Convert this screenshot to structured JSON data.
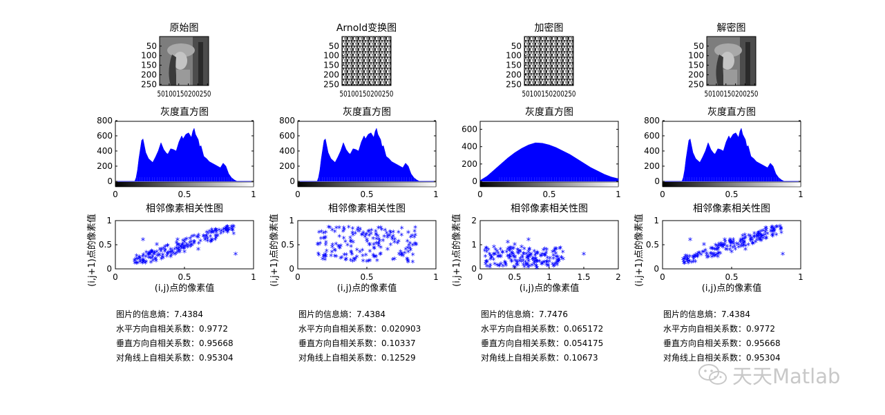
{
  "watermark": "天天Matlab",
  "colors": {
    "hist": "#0000ff",
    "scatter": "#0000ff",
    "axis": "#000000"
  },
  "panels": [
    {
      "image": {
        "title": "原始图",
        "yticks": [
          "50",
          "100",
          "150",
          "200",
          "250"
        ],
        "xtick_text": "50100150200250",
        "content": "lena"
      },
      "stats": {
        "entropy": "图片的信息熵：7.4384",
        "horizontal": "水平方向自相关系数：0.9772",
        "vertical": "垂直方向自相关系数：0.95668",
        "diagonal": "对角线上自相关系数：0.95304"
      }
    },
    {
      "image": {
        "title": "Arnold变换图",
        "yticks": [
          "50",
          "100",
          "150",
          "200",
          "250"
        ],
        "xtick_text": "50100150200250",
        "content": "noise"
      },
      "stats": {
        "entropy": "图片的信息熵：7.4384",
        "horizontal": "水平方向自相关系数：0.020903",
        "vertical": "垂直方向自相关系数：0.10337",
        "diagonal": "对角线上自相关系数：0.12529"
      }
    },
    {
      "image": {
        "title": "加密图",
        "yticks": [
          "50",
          "100",
          "150",
          "200",
          "250"
        ],
        "xtick_text": "50100150200250",
        "content": "noise"
      },
      "stats": {
        "entropy": "图片的信息熵：7.7476",
        "horizontal": "水平方向自相关系数：0.065172",
        "vertical": "垂直方向自相关系数：0.054175",
        "diagonal": "对角线上自相关系数：0.10673"
      }
    },
    {
      "image": {
        "title": "解密图",
        "yticks": [
          "50",
          "100",
          "150",
          "200",
          "250"
        ],
        "xtick_text": "50100150200250",
        "content": "lena"
      },
      "stats": {
        "entropy": "图片的信息熵：7.4384",
        "horizontal": "水平方向自相关系数：0.9772",
        "vertical": "垂直方向自相关系数：0.95668",
        "diagonal": "对角线上自相关系数：0.95304"
      }
    }
  ],
  "chart_data": [
    {
      "type": "area",
      "title": "灰度直方图",
      "xlim": [
        0,
        1
      ],
      "ylim": [
        0,
        800
      ],
      "xticks": [
        "0",
        "0.5",
        "1"
      ],
      "yticks": [
        "0",
        "200",
        "400",
        "600",
        "800"
      ],
      "colorbar": "gray",
      "series": [
        {
          "x": [
            0,
            0.14,
            0.15,
            0.16,
            0.17,
            0.18,
            0.19,
            0.2,
            0.21,
            0.22,
            0.24,
            0.27,
            0.29,
            0.31,
            0.33,
            0.35,
            0.37,
            0.38,
            0.4,
            0.42,
            0.44,
            0.46,
            0.48,
            0.49,
            0.51,
            0.53,
            0.55,
            0.56,
            0.57,
            0.58,
            0.6,
            0.61,
            0.62,
            0.64,
            0.66,
            0.68,
            0.7,
            0.72,
            0.74,
            0.76,
            0.78,
            0.8,
            0.82,
            0.84,
            0.86,
            0.88,
            1
          ],
          "y": [
            0,
            0,
            50,
            150,
            300,
            420,
            540,
            560,
            470,
            380,
            300,
            250,
            320,
            400,
            510,
            420,
            370,
            360,
            430,
            420,
            400,
            520,
            600,
            560,
            620,
            640,
            580,
            660,
            700,
            620,
            550,
            460,
            470,
            330,
            300,
            260,
            240,
            220,
            200,
            180,
            240,
            200,
            100,
            50,
            20,
            0,
            0
          ]
        }
      ]
    },
    {
      "type": "scatter",
      "title": "相邻像素相关性图",
      "xlabel": "(i,j)点的像素值",
      "ylabel": "(i,j+1)点的像素值",
      "xlim": [
        0,
        1
      ],
      "ylim": [
        0,
        1
      ],
      "xticks": [
        "0",
        "0.5",
        "1"
      ],
      "yticks": [
        "0",
        "0.5",
        "1"
      ],
      "points": [
        [
          0.15,
          0.2
        ],
        [
          0.18,
          0.22
        ],
        [
          0.2,
          0.6
        ],
        [
          0.22,
          0.25
        ],
        [
          0.25,
          0.3
        ],
        [
          0.3,
          0.35
        ],
        [
          0.32,
          0.28
        ],
        [
          0.35,
          0.42
        ],
        [
          0.4,
          0.4
        ],
        [
          0.45,
          0.5
        ],
        [
          0.5,
          0.55
        ],
        [
          0.55,
          0.5
        ],
        [
          0.6,
          0.65
        ],
        [
          0.65,
          0.6
        ],
        [
          0.7,
          0.75
        ],
        [
          0.75,
          0.8
        ],
        [
          0.8,
          0.85
        ],
        [
          0.85,
          0.88
        ],
        [
          0.4,
          0.25
        ],
        [
          0.6,
          0.4
        ],
        [
          0.3,
          0.5
        ],
        [
          0.7,
          0.6
        ],
        [
          0.5,
          0.35
        ],
        [
          0.45,
          0.6
        ],
        [
          0.87,
          0.3
        ]
      ]
    },
    {
      "type": "area",
      "title": "灰度直方图",
      "xlim": [
        0,
        1
      ],
      "ylim": [
        0,
        800
      ],
      "xticks": [
        "0",
        "0.5",
        "1"
      ],
      "yticks": [
        "0",
        "200",
        "400",
        "600",
        "800"
      ],
      "colorbar": "gray",
      "series": [
        {
          "x": [
            0,
            0.14,
            0.15,
            0.16,
            0.17,
            0.18,
            0.19,
            0.2,
            0.21,
            0.22,
            0.24,
            0.27,
            0.29,
            0.31,
            0.33,
            0.35,
            0.37,
            0.38,
            0.4,
            0.42,
            0.44,
            0.46,
            0.48,
            0.49,
            0.51,
            0.53,
            0.55,
            0.56,
            0.57,
            0.58,
            0.6,
            0.61,
            0.62,
            0.64,
            0.66,
            0.68,
            0.7,
            0.72,
            0.74,
            0.76,
            0.78,
            0.8,
            0.82,
            0.84,
            0.86,
            0.88,
            1
          ],
          "y": [
            0,
            0,
            50,
            150,
            300,
            420,
            540,
            560,
            470,
            380,
            300,
            250,
            320,
            400,
            510,
            420,
            370,
            360,
            430,
            420,
            400,
            520,
            600,
            560,
            620,
            640,
            580,
            660,
            700,
            620,
            550,
            460,
            470,
            330,
            300,
            260,
            240,
            220,
            200,
            180,
            240,
            200,
            100,
            50,
            20,
            0,
            0
          ]
        }
      ]
    },
    {
      "type": "scatter",
      "title": "相邻像素相关性图",
      "xlabel": "(i,j)点的像素值",
      "ylabel": "(i,j+1)点的像素值",
      "xlim": [
        0,
        1
      ],
      "ylim": [
        0,
        1
      ],
      "xticks": [
        "0",
        "0.5",
        "1"
      ],
      "yticks": [
        "0",
        "0.5",
        "1"
      ],
      "points": [
        [
          0.15,
          0.5
        ],
        [
          0.2,
          0.3
        ],
        [
          0.25,
          0.8
        ],
        [
          0.3,
          0.45
        ],
        [
          0.35,
          0.2
        ],
        [
          0.4,
          0.7
        ],
        [
          0.45,
          0.35
        ],
        [
          0.5,
          0.6
        ],
        [
          0.55,
          0.25
        ],
        [
          0.6,
          0.85
        ],
        [
          0.65,
          0.4
        ],
        [
          0.7,
          0.55
        ],
        [
          0.75,
          0.3
        ],
        [
          0.8,
          0.75
        ],
        [
          0.85,
          0.5
        ],
        [
          0.2,
          0.65
        ],
        [
          0.3,
          0.85
        ],
        [
          0.5,
          0.15
        ],
        [
          0.7,
          0.2
        ],
        [
          0.8,
          0.35
        ],
        [
          0.25,
          0.45
        ],
        [
          0.55,
          0.5
        ],
        [
          0.65,
          0.65
        ],
        [
          0.4,
          0.55
        ],
        [
          0.18,
          0.2
        ]
      ]
    },
    {
      "type": "area",
      "title": "灰度直方图",
      "xlim": [
        0,
        1
      ],
      "ylim": [
        0,
        700
      ],
      "xticks": [
        "0",
        "0.5",
        "1"
      ],
      "yticks": [
        "0",
        "200",
        "400",
        "600"
      ],
      "colorbar": "gray",
      "series": [
        {
          "x": [
            0,
            0.05,
            0.1,
            0.15,
            0.2,
            0.25,
            0.3,
            0.35,
            0.4,
            0.45,
            0.5,
            0.55,
            0.6,
            0.65,
            0.7,
            0.75,
            0.8,
            0.85,
            0.9,
            0.95,
            1
          ],
          "y": [
            10,
            60,
            130,
            200,
            270,
            330,
            380,
            420,
            445,
            440,
            420,
            390,
            350,
            310,
            260,
            210,
            160,
            120,
            80,
            50,
            30
          ]
        }
      ]
    },
    {
      "type": "scatter",
      "title": "相邻像素相关性图",
      "xlabel": "(i,j)点的像素值",
      "ylabel": "(i,j+1)点的像素值",
      "xlim": [
        0,
        2
      ],
      "ylim": [
        0,
        2
      ],
      "xticks": [
        "0",
        "0.5",
        "1",
        "1.5",
        "2"
      ],
      "yticks": [
        "0",
        "1",
        "2"
      ],
      "points": [
        [
          0.1,
          0.3
        ],
        [
          0.2,
          0.6
        ],
        [
          0.3,
          0.2
        ],
        [
          0.4,
          0.8
        ],
        [
          0.5,
          0.5
        ],
        [
          0.6,
          0.3
        ],
        [
          0.7,
          0.7
        ],
        [
          0.8,
          0.4
        ],
        [
          0.9,
          0.6
        ],
        [
          1.0,
          0.3
        ],
        [
          1.1,
          0.5
        ],
        [
          1.2,
          0.4
        ],
        [
          0.5,
          1.0
        ],
        [
          0.7,
          1.2
        ],
        [
          0.4,
          1.1
        ],
        [
          0.2,
          0.9
        ],
        [
          1.5,
          0.6
        ],
        [
          0.1,
          0.1
        ],
        [
          0.3,
          0.5
        ],
        [
          0.6,
          0.9
        ],
        [
          0.9,
          0.2
        ],
        [
          1.05,
          0.7
        ],
        [
          0.15,
          0.55
        ],
        [
          0.75,
          0.15
        ],
        [
          0.45,
          0.35
        ]
      ]
    },
    {
      "type": "area",
      "title": "灰度直方图",
      "xlim": [
        0,
        1
      ],
      "ylim": [
        0,
        800
      ],
      "xticks": [
        "0",
        "0.5",
        "1"
      ],
      "yticks": [
        "0",
        "200",
        "400",
        "600",
        "800"
      ],
      "colorbar": "gray",
      "series": [
        {
          "x": [
            0,
            0.14,
            0.15,
            0.16,
            0.17,
            0.18,
            0.19,
            0.2,
            0.21,
            0.22,
            0.24,
            0.27,
            0.29,
            0.31,
            0.33,
            0.35,
            0.37,
            0.38,
            0.4,
            0.42,
            0.44,
            0.46,
            0.48,
            0.49,
            0.51,
            0.53,
            0.55,
            0.56,
            0.57,
            0.58,
            0.6,
            0.61,
            0.62,
            0.64,
            0.66,
            0.68,
            0.7,
            0.72,
            0.74,
            0.76,
            0.78,
            0.8,
            0.82,
            0.84,
            0.86,
            0.88,
            1
          ],
          "y": [
            0,
            0,
            50,
            150,
            300,
            420,
            540,
            560,
            470,
            380,
            300,
            250,
            320,
            400,
            510,
            420,
            370,
            360,
            430,
            420,
            400,
            520,
            600,
            560,
            620,
            640,
            580,
            660,
            700,
            620,
            550,
            460,
            470,
            330,
            300,
            260,
            240,
            220,
            200,
            180,
            240,
            200,
            100,
            50,
            20,
            0,
            0
          ]
        }
      ]
    },
    {
      "type": "scatter",
      "title": "相邻像素相关性图",
      "xlabel": "(i,j)点的像素值",
      "ylabel": "(i,j+1)点的像素值",
      "xlim": [
        0,
        1
      ],
      "ylim": [
        0,
        1
      ],
      "xticks": [
        "0",
        "0.5",
        "1"
      ],
      "yticks": [
        "0",
        "0.5",
        "1"
      ],
      "points": [
        [
          0.15,
          0.2
        ],
        [
          0.18,
          0.22
        ],
        [
          0.2,
          0.6
        ],
        [
          0.22,
          0.25
        ],
        [
          0.25,
          0.3
        ],
        [
          0.3,
          0.35
        ],
        [
          0.32,
          0.28
        ],
        [
          0.35,
          0.42
        ],
        [
          0.4,
          0.4
        ],
        [
          0.45,
          0.5
        ],
        [
          0.5,
          0.55
        ],
        [
          0.55,
          0.5
        ],
        [
          0.6,
          0.65
        ],
        [
          0.65,
          0.6
        ],
        [
          0.7,
          0.75
        ],
        [
          0.75,
          0.8
        ],
        [
          0.8,
          0.85
        ],
        [
          0.85,
          0.88
        ],
        [
          0.4,
          0.25
        ],
        [
          0.6,
          0.4
        ],
        [
          0.3,
          0.5
        ],
        [
          0.7,
          0.6
        ],
        [
          0.5,
          0.35
        ],
        [
          0.45,
          0.6
        ],
        [
          0.87,
          0.3
        ]
      ]
    }
  ]
}
